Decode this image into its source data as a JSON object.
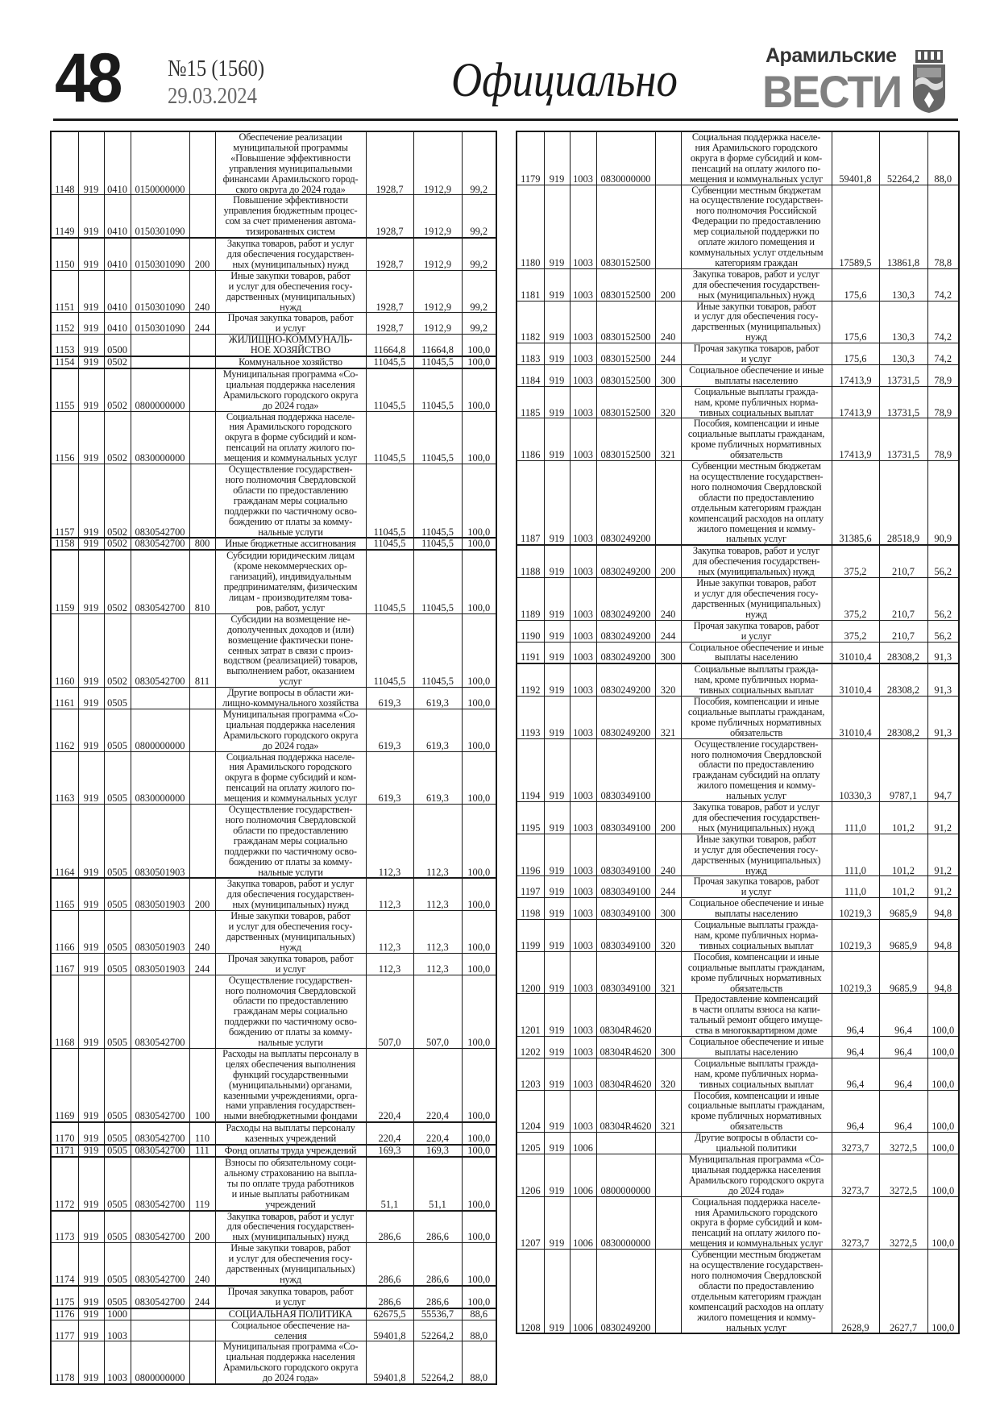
{
  "header": {
    "page_number": "48",
    "issue": "№15 (1560)",
    "date": "29.03.2024",
    "section": "Официально",
    "logo_top": "Арамильские",
    "logo_bottom": "ВЕСТИ",
    "logo_icon": "coat-of-arms-icon"
  },
  "columns": [
    "num",
    "admin",
    "section",
    "target",
    "exp_type",
    "description",
    "plan",
    "fact",
    "percent"
  ],
  "left_rows": [
    [
      "1148",
      "919",
      "0410",
      "0150000000",
      "",
      "Обеспечение реализации\nмуниципальной программы\n«Повышение эффективности\nуправления муниципальными\nфинансами Арамильского город-\nского округа до 2024 года»",
      "1928,7",
      "1912,9",
      "99,2"
    ],
    [
      "1149",
      "919",
      "0410",
      "0150301090",
      "",
      "Повышение эффективности\nуправления бюджетным процес-\nсом за счет применения автома-\nтизированных систем",
      "1928,7",
      "1912,9",
      "99,2"
    ],
    [
      "1150",
      "919",
      "0410",
      "0150301090",
      "200",
      "Закупка товаров, работ и услуг\nдля обеспечения государствен-\nных (муниципальных) нужд",
      "1928,7",
      "1912,9",
      "99,2"
    ],
    [
      "1151",
      "919",
      "0410",
      "0150301090",
      "240",
      "Иные закупки товаров, работ\nи услуг для обеспечения госу-\nдарственных (муниципальных)\nнужд",
      "1928,7",
      "1912,9",
      "99,2"
    ],
    [
      "1152",
      "919",
      "0410",
      "0150301090",
      "244",
      "Прочая закупка товаров, работ\nи услуг",
      "1928,7",
      "1912,9",
      "99,2"
    ],
    [
      "1153",
      "919",
      "0500",
      "",
      "",
      "ЖИЛИЩНО-КОММУНАЛЬ-\nНОЕ ХОЗЯЙСТВО",
      "11664,8",
      "11664,8",
      "100,0"
    ],
    [
      "1154",
      "919",
      "0502",
      "",
      "",
      "Коммунальное хозяйство",
      "11045,5",
      "11045,5",
      "100,0"
    ],
    [
      "1155",
      "919",
      "0502",
      "0800000000",
      "",
      "Муниципальная программа «Со-\nциальная поддержка населения\nАрамильского городского округа\nдо 2024 года»",
      "11045,5",
      "11045,5",
      "100,0"
    ],
    [
      "1156",
      "919",
      "0502",
      "0830000000",
      "",
      "Социальная поддержка населе-\nния Арамильского городского\nокруга в форме субсидий и ком-\nпенсаций на оплату жилого по-\nмещения и коммунальных услуг",
      "11045,5",
      "11045,5",
      "100,0"
    ],
    [
      "1157",
      "919",
      "0502",
      "0830542700",
      "",
      "Осуществление государствен-\nного полномочия Свердловской\nобласти по предоставлению\nгражданам меры социально\nподдержки по частичному осво-\nбождению от платы за комму-\nнальные услуги",
      "11045,5",
      "11045,5",
      "100,0"
    ],
    [
      "1158",
      "919",
      "0502",
      "0830542700",
      "800",
      "Иные бюджетные ассигнования",
      "11045,5",
      "11045,5",
      "100,0"
    ],
    [
      "1159",
      "919",
      "0502",
      "0830542700",
      "810",
      "Субсидии юридическим лицам\n(кроме некоммерческих ор-\nганизаций), индивидуальным\nпредпринимателям, физическим\nлицам - производителям това-\nров, работ, услуг",
      "11045,5",
      "11045,5",
      "100,0"
    ],
    [
      "1160",
      "919",
      "0502",
      "0830542700",
      "811",
      "Субсидии на возмещение не-\nдополученных доходов и (или)\nвозмещение фактически поне-\nсенных затрат в связи с произ-\nводством (реализацией) товаров,\nвыполнением работ, оказанием\nуслуг",
      "11045,5",
      "11045,5",
      "100,0"
    ],
    [
      "1161",
      "919",
      "0505",
      "",
      "",
      "Другие вопросы в области жи-\nлищно-коммунального хозяйства",
      "619,3",
      "619,3",
      "100,0"
    ],
    [
      "1162",
      "919",
      "0505",
      "0800000000",
      "",
      "Муниципальная программа «Со-\nциальная поддержка населения\nАрамильского городского округа\nдо 2024 года»",
      "619,3",
      "619,3",
      "100,0"
    ],
    [
      "1163",
      "919",
      "0505",
      "0830000000",
      "",
      "Социальная поддержка населе-\nния Арамильского городского\nокруга в форме субсидий и ком-\nпенсаций на оплату жилого по-\nмещения и коммунальных услуг",
      "619,3",
      "619,3",
      "100,0"
    ],
    [
      "1164",
      "919",
      "0505",
      "0830501903",
      "",
      "Осуществление государствен-\nного полномочия Свердловской\nобласти по предоставлению\nгражданам меры социально\nподдержки по частичному осво-\nбождению от платы за комму-\nнальные услуги",
      "112,3",
      "112,3",
      "100,0"
    ],
    [
      "1165",
      "919",
      "0505",
      "0830501903",
      "200",
      "Закупка товаров, работ и услуг\nдля обеспечения государствен-\nных (муниципальных) нужд",
      "112,3",
      "112,3",
      "100,0"
    ],
    [
      "1166",
      "919",
      "0505",
      "0830501903",
      "240",
      "Иные закупки товаров, работ\nи услуг для обеспечения госу-\nдарственных (муниципальных)\nнужд",
      "112,3",
      "112,3",
      "100,0"
    ],
    [
      "1167",
      "919",
      "0505",
      "0830501903",
      "244",
      "Прочая закупка товаров, работ\nи услуг",
      "112,3",
      "112,3",
      "100,0"
    ],
    [
      "1168",
      "919",
      "0505",
      "0830542700",
      "",
      "Осуществление государствен-\nного полномочия Свердловской\nобласти по предоставлению\nгражданам меры социально\nподдержки по частичному осво-\nбождению от платы за комму-\nнальные услуги",
      "507,0",
      "507,0",
      "100,0"
    ],
    [
      "1169",
      "919",
      "0505",
      "0830542700",
      "100",
      "Расходы на выплаты персоналу в\nцелях обеспечения выполнения\nфункций государственными\n(муниципальными) органами,\nказенными учреждениями, орга-\nнами управления государствен-\nными внебюджетными фондами",
      "220,4",
      "220,4",
      "100,0"
    ],
    [
      "1170",
      "919",
      "0505",
      "0830542700",
      "110",
      "Расходы на выплаты персоналу\nказенных учреждений",
      "220,4",
      "220,4",
      "100,0"
    ],
    [
      "1171",
      "919",
      "0505",
      "0830542700",
      "111",
      "Фонд оплаты труда учреждений",
      "169,3",
      "169,3",
      "100,0"
    ],
    [
      "1172",
      "919",
      "0505",
      "0830542700",
      "119",
      "Взносы по обязательному соци-\nальному страхованию на выпла-\nты по оплате труда работников\nи иные выплаты работникам\nучреждений",
      "51,1",
      "51,1",
      "100,0"
    ],
    [
      "1173",
      "919",
      "0505",
      "0830542700",
      "200",
      "Закупка товаров, работ и услуг\nдля обеспечения государствен-\nных (муниципальных) нужд",
      "286,6",
      "286,6",
      "100,0"
    ],
    [
      "1174",
      "919",
      "0505",
      "0830542700",
      "240",
      "Иные закупки товаров, работ\nи услуг для обеспечения госу-\nдарственных (муниципальных)\nнужд",
      "286,6",
      "286,6",
      "100,0"
    ],
    [
      "1175",
      "919",
      "0505",
      "0830542700",
      "244",
      "Прочая закупка товаров, работ\nи услуг",
      "286,6",
      "286,6",
      "100,0"
    ],
    [
      "1176",
      "919",
      "1000",
      "",
      "",
      "СОЦИАЛЬНАЯ ПОЛИТИКА",
      "62675,5",
      "55536,7",
      "88,6"
    ],
    [
      "1177",
      "919",
      "1003",
      "",
      "",
      "Социальное обеспечение на-\nселения",
      "59401,8",
      "52264,2",
      "88,0"
    ],
    [
      "1178",
      "919",
      "1003",
      "0800000000",
      "",
      "Муниципальная программа «Со-\nциальная поддержка населения\nАрамильского городского округа\nдо 2024 года»",
      "59401,8",
      "52264,2",
      "88,0"
    ]
  ],
  "right_rows": [
    [
      "1179",
      "919",
      "1003",
      "0830000000",
      "",
      "Социальная поддержка населе-\nния Арамильского городского\nокруга в форме субсидий и ком-\nпенсаций на оплату жилого по-\nмещения и коммунальных услуг",
      "59401,8",
      "52264,2",
      "88,0"
    ],
    [
      "1180",
      "919",
      "1003",
      "0830152500",
      "",
      "Субвенции местным бюджетам\nна осуществление государствен-\nного полномочия Российской\nФедерации по предоставлению\nмер социальной поддержки по\nоплате жилого помещения и\nкоммунальных услуг отдельным\nкатегориям граждан",
      "17589,5",
      "13861,8",
      "78,8"
    ],
    [
      "1181",
      "919",
      "1003",
      "0830152500",
      "200",
      "Закупка товаров, работ и услуг\nдля обеспечения государствен-\nных (муниципальных) нужд",
      "175,6",
      "130,3",
      "74,2"
    ],
    [
      "1182",
      "919",
      "1003",
      "0830152500",
      "240",
      "Иные закупки товаров, работ\nи услуг для обеспечения госу-\nдарственных (муниципальных)\nнужд",
      "175,6",
      "130,3",
      "74,2"
    ],
    [
      "1183",
      "919",
      "1003",
      "0830152500",
      "244",
      "Прочая закупка товаров, работ\nи услуг",
      "175,6",
      "130,3",
      "74,2"
    ],
    [
      "1184",
      "919",
      "1003",
      "0830152500",
      "300",
      "Социальное обеспечение и иные\nвыплаты населению",
      "17413,9",
      "13731,5",
      "78,9"
    ],
    [
      "1185",
      "919",
      "1003",
      "0830152500",
      "320",
      "Социальные выплаты гражда-\nнам, кроме публичных норма-\nтивных социальных выплат",
      "17413,9",
      "13731,5",
      "78,9"
    ],
    [
      "1186",
      "919",
      "1003",
      "0830152500",
      "321",
      "Пособия, компенсации и иные\nсоциальные выплаты гражданам,\nкроме публичных нормативных\nобязательств",
      "17413,9",
      "13731,5",
      "78,9"
    ],
    [
      "1187",
      "919",
      "1003",
      "0830249200",
      "",
      "Субвенции местным бюджетам\nна осуществление государствен-\nного полномочия Свердловской\nобласти по предоставлению\nотдельным категориям граждан\nкомпенсаций расходов на оплату\nжилого помещения и комму-\nнальных услуг",
      "31385,6",
      "28518,9",
      "90,9"
    ],
    [
      "1188",
      "919",
      "1003",
      "0830249200",
      "200",
      "Закупка товаров, работ и услуг\nдля обеспечения государствен-\nных (муниципальных) нужд",
      "375,2",
      "210,7",
      "56,2"
    ],
    [
      "1189",
      "919",
      "1003",
      "0830249200",
      "240",
      "Иные закупки товаров, работ\nи услуг для обеспечения госу-\nдарственных (муниципальных)\nнужд",
      "375,2",
      "210,7",
      "56,2"
    ],
    [
      "1190",
      "919",
      "1003",
      "0830249200",
      "244",
      "Прочая закупка товаров, работ\nи услуг",
      "375,2",
      "210,7",
      "56,2"
    ],
    [
      "1191",
      "919",
      "1003",
      "0830249200",
      "300",
      "Социальное обеспечение и иные\nвыплаты населению",
      "31010,4",
      "28308,2",
      "91,3"
    ],
    [
      "1192",
      "919",
      "1003",
      "0830249200",
      "320",
      "Социальные выплаты гражда-\nнам, кроме публичных норма-\nтивных социальных выплат",
      "31010,4",
      "28308,2",
      "91,3"
    ],
    [
      "1193",
      "919",
      "1003",
      "0830249200",
      "321",
      "Пособия, компенсации и иные\nсоциальные выплаты гражданам,\nкроме публичных нормативных\nобязательств",
      "31010,4",
      "28308,2",
      "91,3"
    ],
    [
      "1194",
      "919",
      "1003",
      "0830349100",
      "",
      "Осуществление государствен-\nного полномочия Свердловской\nобласти по предоставлению\nгражданам субсидий на оплату\nжилого помещения и комму-\nнальных услуг",
      "10330,3",
      "9787,1",
      "94,7"
    ],
    [
      "1195",
      "919",
      "1003",
      "0830349100",
      "200",
      "Закупка товаров, работ и услуг\nдля обеспечения государствен-\nных (муниципальных) нужд",
      "111,0",
      "101,2",
      "91,2"
    ],
    [
      "1196",
      "919",
      "1003",
      "0830349100",
      "240",
      "Иные закупки товаров, работ\nи услуг для обеспечения госу-\nдарственных (муниципальных)\nнужд",
      "111,0",
      "101,2",
      "91,2"
    ],
    [
      "1197",
      "919",
      "1003",
      "0830349100",
      "244",
      "Прочая закупка товаров, работ\nи услуг",
      "111,0",
      "101,2",
      "91,2"
    ],
    [
      "1198",
      "919",
      "1003",
      "0830349100",
      "300",
      "Социальное обеспечение и иные\nвыплаты населению",
      "10219,3",
      "9685,9",
      "94,8"
    ],
    [
      "1199",
      "919",
      "1003",
      "0830349100",
      "320",
      "Социальные выплаты гражда-\nнам, кроме публичных норма-\nтивных социальных выплат",
      "10219,3",
      "9685,9",
      "94,8"
    ],
    [
      "1200",
      "919",
      "1003",
      "0830349100",
      "321",
      "Пособия, компенсации и иные\nсоциальные выплаты гражданам,\nкроме публичных нормативных\nобязательств",
      "10219,3",
      "9685,9",
      "94,8"
    ],
    [
      "1201",
      "919",
      "1003",
      "08304R4620",
      "",
      "Предоставление компенсаций\nв части оплаты взноса на капи-\nтальный ремонт общего имуще-\nства в многоквартирном доме",
      "96,4",
      "96,4",
      "100,0"
    ],
    [
      "1202",
      "919",
      "1003",
      "08304R4620",
      "300",
      "Социальное обеспечение и иные\nвыплаты населению",
      "96,4",
      "96,4",
      "100,0"
    ],
    [
      "1203",
      "919",
      "1003",
      "08304R4620",
      "320",
      "Социальные выплаты гражда-\nнам, кроме публичных норма-\nтивных социальных выплат",
      "96,4",
      "96,4",
      "100,0"
    ],
    [
      "1204",
      "919",
      "1003",
      "08304R4620",
      "321",
      "Пособия, компенсации и иные\nсоциальные выплаты гражданам,\nкроме публичных нормативных\nобязательств",
      "96,4",
      "96,4",
      "100,0"
    ],
    [
      "1205",
      "919",
      "1006",
      "",
      "",
      "Другие вопросы в области со-\nциальной политики",
      "3273,7",
      "3272,5",
      "100,0"
    ],
    [
      "1206",
      "919",
      "1006",
      "0800000000",
      "",
      "Муниципальная программа «Со-\nциальная поддержка населения\nАрамильского городского округа\nдо 2024 года»",
      "3273,7",
      "3272,5",
      "100,0"
    ],
    [
      "1207",
      "919",
      "1006",
      "0830000000",
      "",
      "Социальная поддержка населе-\nния Арамильского городского\nокруга в форме субсидий и ком-\nпенсаций на оплату жилого по-\nмещения и коммунальных услуг",
      "3273,7",
      "3272,5",
      "100,0"
    ],
    [
      "1208",
      "919",
      "1006",
      "0830249200",
      "",
      "Субвенции местным бюджетам\nна осуществление государствен-\nного полномочия Свердловской\nобласти по предоставлению\nотдельным категориям граждан\nкомпенсаций расходов на оплату\nжилого помещения и комму-\nнальных услуг",
      "2628,9",
      "2627,7",
      "100,0"
    ]
  ]
}
